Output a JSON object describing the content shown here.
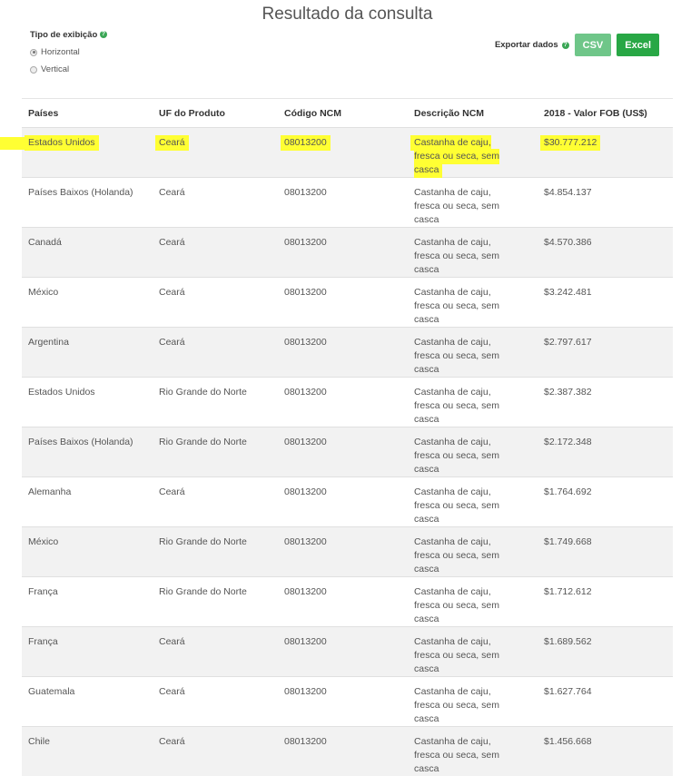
{
  "title": "Resultado da consulta",
  "display": {
    "label": "Tipo de exibição",
    "help_icon": "question-circle-icon",
    "options": [
      {
        "label": "Horizontal",
        "selected": true
      },
      {
        "label": "Vertical",
        "selected": false
      }
    ]
  },
  "export": {
    "label": "Exportar dados",
    "csv": "CSV",
    "excel": "Excel"
  },
  "colors": {
    "accent": "#28a745",
    "csv": "#6fc689",
    "highlight": "#ffff33"
  },
  "columns": [
    "Países",
    "UF do Produto",
    "Código NCM",
    "Descrição NCM",
    "2018 - Valor FOB (US$)"
  ],
  "rows": [
    [
      "Estados Unidos",
      "Ceará",
      "08013200",
      "Castanha de caju, fresca ou seca, sem casca",
      "$30.777.212"
    ],
    [
      "Países Baixos (Holanda)",
      "Ceará",
      "08013200",
      "Castanha de caju, fresca ou seca, sem casca",
      "$4.854.137"
    ],
    [
      "Canadá",
      "Ceará",
      "08013200",
      "Castanha de caju, fresca ou seca, sem casca",
      "$4.570.386"
    ],
    [
      "México",
      "Ceará",
      "08013200",
      "Castanha de caju, fresca ou seca, sem casca",
      "$3.242.481"
    ],
    [
      "Argentina",
      "Ceará",
      "08013200",
      "Castanha de caju, fresca ou seca, sem casca",
      "$2.797.617"
    ],
    [
      "Estados Unidos",
      "Rio Grande do Norte",
      "08013200",
      "Castanha de caju, fresca ou seca, sem casca",
      "$2.387.382"
    ],
    [
      "Países Baixos (Holanda)",
      "Rio Grande do Norte",
      "08013200",
      "Castanha de caju, fresca ou seca, sem casca",
      "$2.172.348"
    ],
    [
      "Alemanha",
      "Ceará",
      "08013200",
      "Castanha de caju, fresca ou seca, sem casca",
      "$1.764.692"
    ],
    [
      "México",
      "Rio Grande do Norte",
      "08013200",
      "Castanha de caju, fresca ou seca, sem casca",
      "$1.749.668"
    ],
    [
      "França",
      "Rio Grande do Norte",
      "08013200",
      "Castanha de caju, fresca ou seca, sem casca",
      "$1.712.612"
    ],
    [
      "França",
      "Ceará",
      "08013200",
      "Castanha de caju, fresca ou seca, sem casca",
      "$1.689.562"
    ],
    [
      "Guatemala",
      "Ceará",
      "08013200",
      "Castanha de caju, fresca ou seca, sem casca",
      "$1.627.764"
    ],
    [
      "Chile",
      "Ceará",
      "08013200",
      "Castanha de caju, fresca ou seca, sem casca",
      "$1.456.668"
    ]
  ]
}
